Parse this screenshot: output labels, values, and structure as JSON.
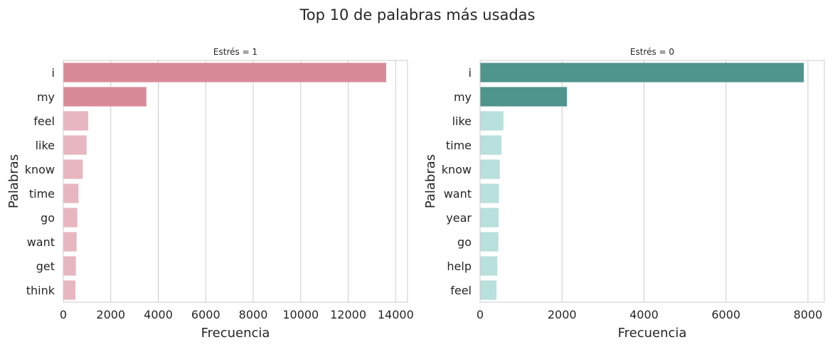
{
  "suptitle": "Top 10 de palabras más usadas",
  "chart_data": [
    {
      "type": "bar",
      "orientation": "horizontal",
      "title": "Estrés = 1",
      "xlabel": "Frecuencia",
      "ylabel": "Palabras",
      "categories": [
        "i",
        "my",
        "feel",
        "like",
        "know",
        "time",
        "go",
        "want",
        "get",
        "think"
      ],
      "values": [
        13600,
        3500,
        1050,
        980,
        820,
        640,
        590,
        560,
        530,
        510
      ],
      "xlim": [
        0,
        14500
      ],
      "xticks": [
        0,
        2000,
        4000,
        6000,
        8000,
        10000,
        12000,
        14000
      ],
      "grid": "vertical",
      "colors": {
        "highlight": "#d98a98",
        "normal": "#e8b6c1"
      },
      "highlight_count": 2
    },
    {
      "type": "bar",
      "orientation": "horizontal",
      "title": "Estrés = 0",
      "xlabel": "Frecuencia",
      "ylabel": "Palabras",
      "categories": [
        "i",
        "my",
        "like",
        "time",
        "know",
        "want",
        "year",
        "go",
        "help",
        "feel"
      ],
      "values": [
        7900,
        2120,
        570,
        520,
        480,
        460,
        450,
        445,
        420,
        400
      ],
      "xlim": [
        0,
        8400
      ],
      "xticks": [
        0,
        2000,
        4000,
        6000,
        8000
      ],
      "grid": "vertical",
      "colors": {
        "highlight": "#4f948d",
        "normal": "#b8e0dd"
      },
      "highlight_count": 2
    }
  ]
}
